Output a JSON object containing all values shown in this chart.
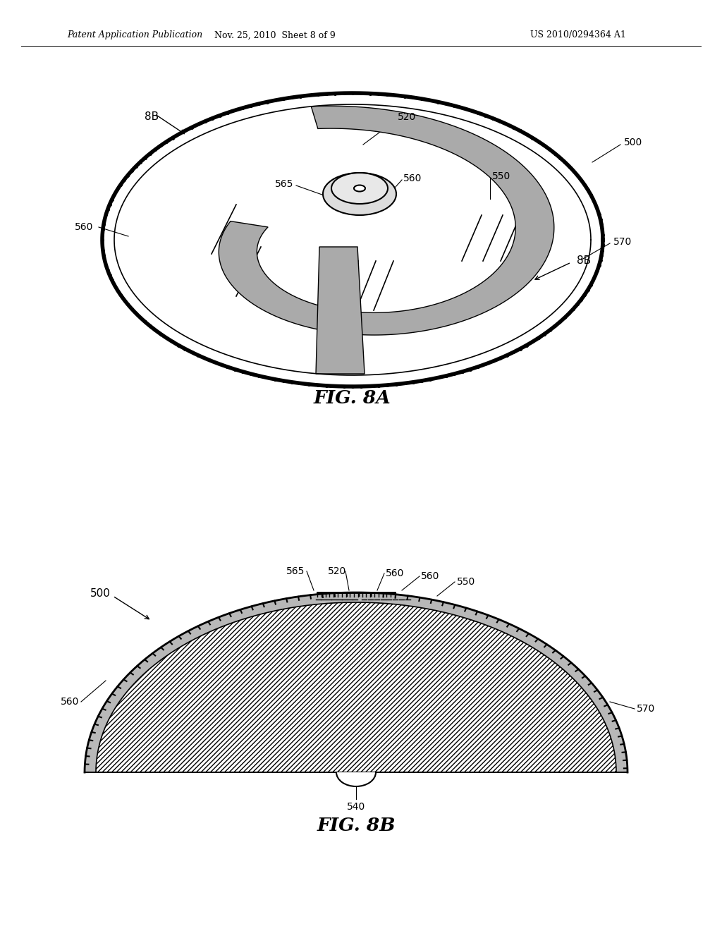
{
  "bg_color": "#ffffff",
  "header_left": "Patent Application Publication",
  "header_mid": "Nov. 25, 2010  Sheet 8 of 9",
  "header_right": "US 2010/0294364 A1",
  "fig8a_label": "FIG. 8A",
  "fig8b_label": "FIG. 8B"
}
